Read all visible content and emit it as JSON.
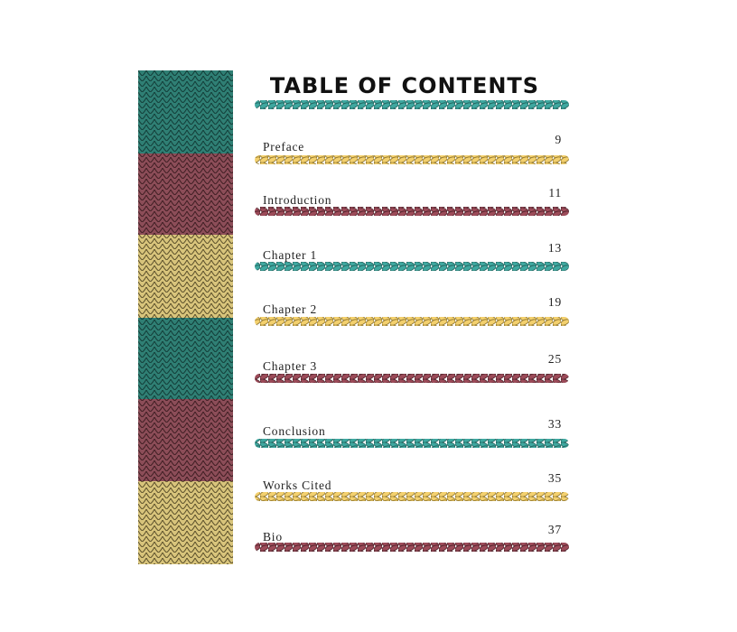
{
  "title": "TABLE OF CONTENTS",
  "entries": [
    {
      "label": "Preface",
      "page": 9
    },
    {
      "label": "Introduction",
      "page": 11
    },
    {
      "label": "Chapter 1",
      "page": 13
    },
    {
      "label": "Chapter 2",
      "page": 19
    },
    {
      "label": "Chapter 3",
      "page": 25
    },
    {
      "label": "Conclusion",
      "page": 33
    },
    {
      "label": "Works Cited",
      "page": 35
    },
    {
      "label": "Bio",
      "page": 37
    }
  ]
}
